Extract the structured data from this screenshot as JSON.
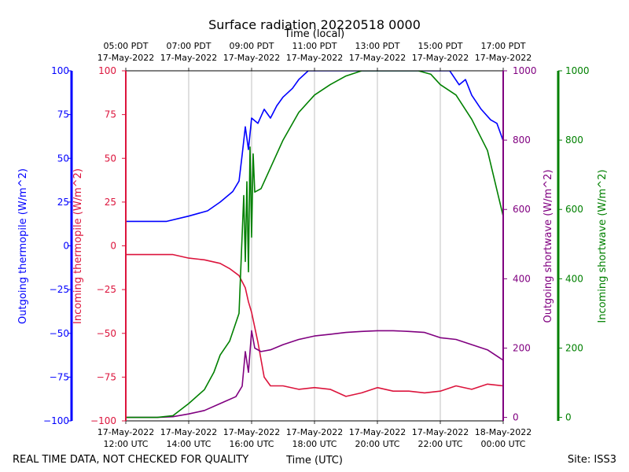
{
  "chart_data": {
    "type": "line",
    "title": "Surface radiation 20220518 0000",
    "top_xlabel": "Time (local)",
    "xlabel": "Time (UTC)",
    "footer_left": "REAL TIME DATA, NOT CHECKED FOR QUALITY",
    "footer_right": "Site: ISS3",
    "x_range_utc_hours": [
      12,
      24
    ],
    "top_ticks": [
      {
        "time": "05:00 PDT",
        "date": "17-May-2022"
      },
      {
        "time": "07:00 PDT",
        "date": "17-May-2022"
      },
      {
        "time": "09:00 PDT",
        "date": "17-May-2022"
      },
      {
        "time": "11:00 PDT",
        "date": "17-May-2022"
      },
      {
        "time": "13:00 PDT",
        "date": "17-May-2022"
      },
      {
        "time": "15:00 PDT",
        "date": "17-May-2022"
      },
      {
        "time": "17:00 PDT",
        "date": "17-May-2022"
      }
    ],
    "bottom_ticks": [
      {
        "date": "17-May-2022",
        "time": "12:00 UTC"
      },
      {
        "date": "17-May-2022",
        "time": "14:00 UTC"
      },
      {
        "date": "17-May-2022",
        "time": "16:00 UTC"
      },
      {
        "date": "17-May-2022",
        "time": "18:00 UTC"
      },
      {
        "date": "17-May-2022",
        "time": "20:00 UTC"
      },
      {
        "date": "17-May-2022",
        "time": "22:00 UTC"
      },
      {
        "date": "18-May-2022",
        "time": "00:00 UTC"
      }
    ],
    "axes": [
      {
        "id": "out_thermo",
        "label": "Outgoing thermopile (W/m^2)",
        "color": "#0000ff",
        "ylim": [
          -100,
          100
        ],
        "tick_values": [
          -100,
          -75,
          -50,
          -25,
          0,
          25,
          50,
          75,
          100
        ],
        "tick_labels": [
          "−100",
          "−75",
          "−50",
          "−25",
          "0",
          "25",
          "50",
          "75",
          "100"
        ]
      },
      {
        "id": "in_thermo",
        "label": "Incoming thermopile (W/m^2)",
        "color": "#dc143c",
        "ylim": [
          -100,
          100
        ],
        "tick_values": [
          -100,
          -75,
          -50,
          -25,
          0,
          25,
          50,
          75,
          100
        ],
        "tick_labels": [
          "−100",
          "−75",
          "−50",
          "−25",
          "0",
          "25",
          "50",
          "75",
          "100"
        ]
      },
      {
        "id": "out_sw",
        "label": "Outgoing shortwave (W/m^2)",
        "color": "#800080",
        "ylim": [
          -10,
          1000
        ],
        "tick_values": [
          0,
          200,
          400,
          600,
          800,
          1000
        ],
        "tick_labels": [
          "0",
          "200",
          "400",
          "600",
          "800",
          "1000"
        ]
      },
      {
        "id": "in_sw",
        "label": "Incoming shortwave (W/m^2)",
        "color": "#008000",
        "ylim": [
          -10,
          1000
        ],
        "tick_values": [
          0,
          200,
          400,
          600,
          800,
          1000
        ],
        "tick_labels": [
          "0",
          "200",
          "400",
          "600",
          "800",
          "1000"
        ]
      }
    ],
    "series": [
      {
        "name": "Outgoing thermopile",
        "axis": "out_thermo",
        "color": "#0000ff",
        "x": [
          12.0,
          12.8,
          13.3,
          14.0,
          14.6,
          15.0,
          15.4,
          15.6,
          15.7,
          15.8,
          15.9,
          16.0,
          16.2,
          16.4,
          16.6,
          16.8,
          17.0,
          17.3,
          17.5,
          17.8,
          18.0,
          20.0,
          22.0,
          22.3,
          22.6,
          22.8,
          23.0,
          23.3,
          23.6,
          23.8,
          24.0
        ],
        "y": [
          14,
          14,
          14,
          17,
          20,
          25,
          31,
          37,
          52,
          68,
          55,
          73,
          70,
          78,
          73,
          80,
          85,
          90,
          95,
          100,
          100,
          100,
          100,
          100,
          92,
          95,
          86,
          78,
          72,
          70,
          60
        ]
      },
      {
        "name": "Incoming thermopile",
        "axis": "in_thermo",
        "color": "#dc143c",
        "x": [
          12.0,
          13.0,
          13.5,
          14.0,
          14.5,
          15.0,
          15.3,
          15.6,
          15.8,
          15.9,
          16.0,
          16.2,
          16.4,
          16.6,
          17.0,
          17.5,
          18.0,
          18.5,
          19.0,
          19.5,
          20.0,
          20.5,
          21.0,
          21.5,
          22.0,
          22.5,
          23.0,
          23.5,
          24.0
        ],
        "y": [
          -5,
          -5,
          -5,
          -7,
          -8,
          -10,
          -13,
          -17,
          -24,
          -32,
          -38,
          -55,
          -75,
          -80,
          -80,
          -82,
          -81,
          -82,
          -86,
          -84,
          -81,
          -83,
          -83,
          -84,
          -83,
          -80,
          -82,
          -79,
          -80
        ]
      },
      {
        "name": "Outgoing shortwave",
        "axis": "out_sw",
        "color": "#800080",
        "x": [
          12.0,
          13.0,
          13.5,
          14.0,
          14.5,
          15.0,
          15.5,
          15.7,
          15.8,
          15.9,
          16.0,
          16.1,
          16.3,
          16.6,
          17.0,
          17.5,
          18.0,
          18.5,
          19.0,
          19.5,
          20.0,
          20.5,
          21.0,
          21.5,
          22.0,
          22.5,
          23.0,
          23.5,
          24.0
        ],
        "y": [
          0,
          0,
          2,
          10,
          20,
          40,
          60,
          90,
          190,
          130,
          250,
          200,
          190,
          195,
          210,
          225,
          235,
          240,
          245,
          248,
          250,
          250,
          248,
          245,
          230,
          225,
          210,
          195,
          165
        ]
      },
      {
        "name": "Incoming shortwave",
        "axis": "in_sw",
        "color": "#008000",
        "x": [
          12.0,
          13.0,
          13.5,
          14.0,
          14.5,
          14.8,
          15.0,
          15.3,
          15.6,
          15.75,
          15.8,
          15.85,
          15.9,
          15.95,
          16.0,
          16.05,
          16.1,
          16.3,
          16.5,
          16.8,
          17.0,
          17.5,
          18.0,
          18.5,
          19.0,
          19.5,
          20.0,
          20.5,
          21.0,
          21.3,
          21.7,
          22.0,
          22.5,
          23.0,
          23.5,
          24.0
        ],
        "y": [
          0,
          0,
          5,
          40,
          80,
          130,
          180,
          220,
          300,
          640,
          450,
          680,
          420,
          780,
          520,
          760,
          650,
          660,
          700,
          760,
          800,
          880,
          930,
          960,
          985,
          1000,
          1000,
          1000,
          1000,
          1000,
          990,
          960,
          930,
          860,
          770,
          580
        ]
      }
    ]
  }
}
